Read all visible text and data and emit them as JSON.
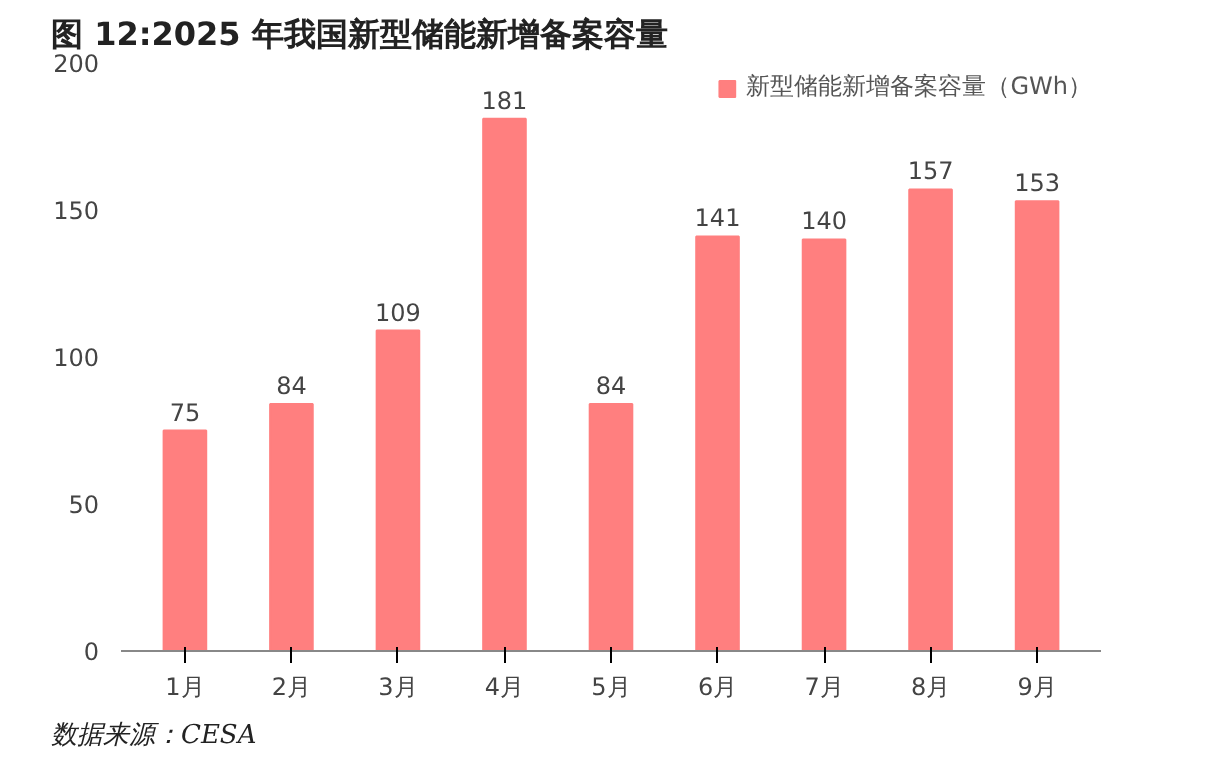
{
  "chart_data": {
    "type": "bar",
    "title": "图 12:2025 年我国新型储能新增备案容量",
    "categories": [
      "1月",
      "2月",
      "3月",
      "4月",
      "5月",
      "6月",
      "7月",
      "8月",
      "9月"
    ],
    "series": [
      {
        "name": "新型储能新增备案容量（GWh）",
        "color": "#ff7f7f",
        "values": [
          75,
          84,
          109,
          181,
          84,
          141,
          140,
          157,
          153
        ]
      }
    ],
    "ylim": [
      0,
      200
    ],
    "yticks": [
      0,
      50,
      100,
      150,
      200
    ],
    "data_labels": true,
    "legend": "top right",
    "grid": false,
    "annotations": [
      "数据来源：CESA"
    ]
  }
}
